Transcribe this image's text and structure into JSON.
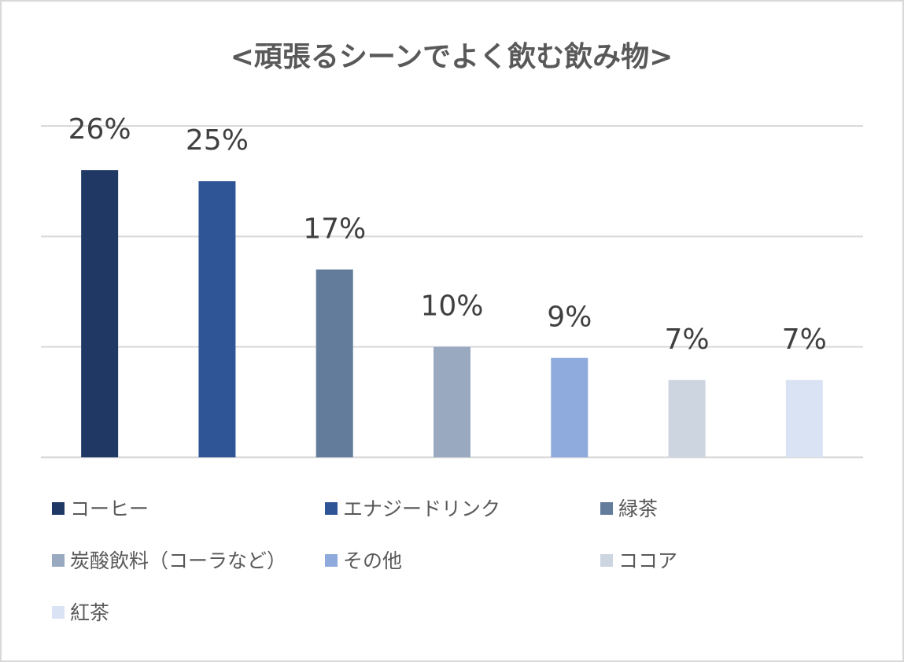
{
  "chart_data": {
    "type": "bar",
    "title": "<頑張るシーンでよく飲む飲み物>",
    "xlabel": "",
    "ylabel": "",
    "ylim": [
      0,
      30
    ],
    "grid": true,
    "legend_position": "bottom",
    "value_suffix": "%",
    "categories": [
      "コーヒー",
      "エナジードリンク",
      "緑茶",
      "炭酸飲料（コーラなど）",
      "その他",
      "ココア",
      "紅茶"
    ],
    "values": [
      26,
      25,
      17,
      10,
      9,
      7,
      7
    ],
    "data_labels": [
      "26%",
      "25%",
      "17%",
      "10%",
      "9%",
      "7%",
      "7%"
    ],
    "colors": [
      "#203864",
      "#2f5597",
      "#647c9c",
      "#98a9c0",
      "#8faadc",
      "#cdd5e0",
      "#dae3f3"
    ],
    "gridline_color": "#d9d9d9"
  }
}
